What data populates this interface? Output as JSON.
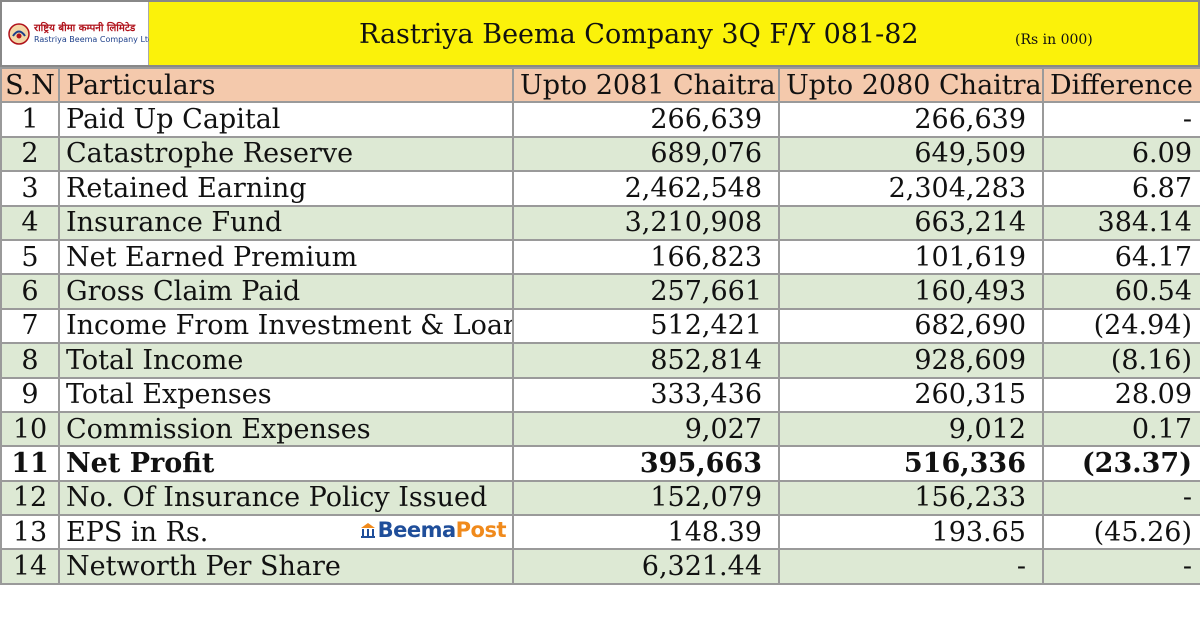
{
  "header": {
    "logo_line1": "राष्ट्रिय बीमा कम्पनी लिमिटेड",
    "logo_line2": "Rastriya Beema Company Ltd.",
    "title": "Rastriya Beema Company 3Q F/Y 081-82",
    "unit": "(Rs in 000)"
  },
  "columns": [
    "S.N",
    "Particulars",
    "Upto 2081 Chaitra",
    "Upto 2080 Chaitra",
    "Difference"
  ],
  "rows": [
    {
      "sn": "1",
      "particular": "Paid Up Capital",
      "cur": "266,639",
      "prev": "266,639",
      "diff": "-"
    },
    {
      "sn": "2",
      "particular": "Catastrophe Reserve",
      "cur": "689,076",
      "prev": "649,509",
      "diff": "6.09"
    },
    {
      "sn": "3",
      "particular": "Retained Earning",
      "cur": "2,462,548",
      "prev": "2,304,283",
      "diff": "6.87"
    },
    {
      "sn": "4",
      "particular": "Insurance Fund",
      "cur": "3,210,908",
      "prev": "663,214",
      "diff": "384.14"
    },
    {
      "sn": "5",
      "particular": "Net Earned Premium",
      "cur": "166,823",
      "prev": "101,619",
      "diff": "64.17"
    },
    {
      "sn": "6",
      "particular": "Gross Claim Paid",
      "cur": "257,661",
      "prev": "160,493",
      "diff": "60.54"
    },
    {
      "sn": "7",
      "particular": "Income From Investment & Loan",
      "cur": "512,421",
      "prev": "682,690",
      "diff": "(24.94)"
    },
    {
      "sn": "8",
      "particular": "Total Income",
      "cur": "852,814",
      "prev": "928,609",
      "diff": "(8.16)"
    },
    {
      "sn": "9",
      "particular": "Total Expenses",
      "cur": "333,436",
      "prev": "260,315",
      "diff": "28.09"
    },
    {
      "sn": "10",
      "particular": "Commission Expenses",
      "cur": "9,027",
      "prev": "9,012",
      "diff": "0.17"
    },
    {
      "sn": "11",
      "particular": "Net Profit",
      "cur": "395,663",
      "prev": "516,336",
      "diff": "(23.37)"
    },
    {
      "sn": "12",
      "particular": "No. Of Insurance Policy Issued",
      "cur": "152,079",
      "prev": "156,233",
      "diff": "-"
    },
    {
      "sn": "13",
      "particular": "EPS in Rs.",
      "cur": "148.39",
      "prev": "193.65",
      "diff": "(45.26)"
    },
    {
      "sn": "14",
      "particular": "Networth Per Share",
      "cur": "6,321.44",
      "prev": "-",
      "diff": "-"
    }
  ],
  "watermark": {
    "part1": "Beema",
    "part2": "Post"
  },
  "colors": {
    "title_bg": "#fbf20a",
    "header_row_bg": "#f4c9ac",
    "alt_row_bg": "#dde9d4",
    "brand_blue": "#1f4e9a",
    "brand_orange": "#f08a1c"
  }
}
